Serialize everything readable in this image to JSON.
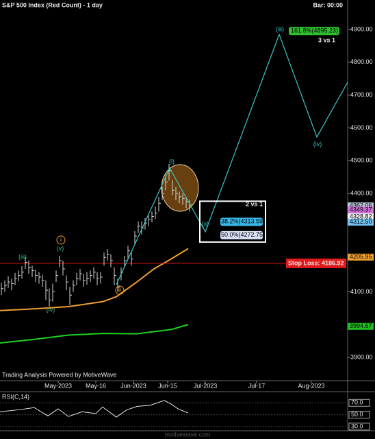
{
  "chart_data": [
    {
      "type": "ohlc",
      "title": "S&P 500 Index (Red Count) - 1 day",
      "bar_time": "Bar: 00:00",
      "powered_by": "Trading Analysis Powered by MotiveWave",
      "xlim": [
        0,
        101.6
      ],
      "ylim": [
        3829,
        4990
      ],
      "xticks": [
        {
          "value": 17,
          "label": "May-2023"
        },
        {
          "value": 28,
          "label": "May-16"
        },
        {
          "value": 39,
          "label": "Jun-2023"
        },
        {
          "value": 49,
          "label": "Jun-15"
        },
        {
          "value": 60,
          "label": "Jul-2023"
        },
        {
          "value": 75,
          "label": "Jul-17"
        },
        {
          "value": 91,
          "label": "Aug-2023"
        }
      ],
      "yticks": [
        {
          "value": 3900,
          "label": "3900.00"
        },
        {
          "value": 4100,
          "label": "4100.00"
        },
        {
          "value": 4400,
          "label": "4400.00"
        },
        {
          "value": 4500,
          "label": "4500.00"
        },
        {
          "value": 4600,
          "label": "4600.00"
        },
        {
          "value": 4700,
          "label": "4700.00"
        },
        {
          "value": 4800,
          "label": "4800.00"
        },
        {
          "value": 4900,
          "label": "4900.00"
        }
      ],
      "bar_color": "#d8d8d8",
      "bars": {
        "high": [
          4128,
          4135,
          4148,
          4140,
          4158,
          4165,
          4178,
          4205,
          4195,
          4180,
          4168,
          4160,
          4152,
          4135,
          4110,
          4125,
          4165,
          4210,
          4195,
          4150,
          4115,
          4135,
          4158,
          4170,
          4155,
          4160,
          4165,
          4175,
          4160,
          4160,
          4220,
          4230,
          4215,
          4175,
          4140,
          4175,
          4210,
          4240,
          4225,
          4285,
          4315,
          4315,
          4325,
          4335,
          4345,
          4360,
          4390,
          4420,
          4455,
          4490,
          4440,
          4420,
          4405,
          4400,
          4390,
          4380
        ],
        "low": [
          4090,
          4100,
          4112,
          4105,
          4120,
          4132,
          4140,
          4170,
          4155,
          4145,
          4130,
          4125,
          4115,
          4075,
          4055,
          4070,
          4130,
          4175,
          4150,
          4105,
          4060,
          4100,
          4120,
          4135,
          4115,
          4122,
          4130,
          4140,
          4120,
          4125,
          4180,
          4195,
          4175,
          4120,
          4100,
          4135,
          4175,
          4200,
          4180,
          4245,
          4280,
          4275,
          4290,
          4300,
          4312,
          4322,
          4345,
          4380,
          4410,
          4440,
          4395,
          4380,
          4370,
          4365,
          4355,
          4345
        ],
        "close": [
          4110,
          4120,
          4130,
          4125,
          4140,
          4150,
          4160,
          4190,
          4175,
          4165,
          4150,
          4145,
          4135,
          4105,
          4075,
          4100,
          4150,
          4195,
          4170,
          4130,
          4090,
          4120,
          4140,
          4155,
          4135,
          4140,
          4150,
          4160,
          4140,
          4145,
          4205,
          4215,
          4195,
          4150,
          4115,
          4160,
          4195,
          4225,
          4200,
          4270,
          4300,
          4295,
          4310,
          4320,
          4330,
          4340,
          4370,
          4400,
          4435,
          4470,
          4410,
          4400,
          4390,
          4385,
          4375,
          4365
        ]
      },
      "overlays": [
        {
          "color": "#f0a030",
          "x": [
            0,
            10,
            20,
            30,
            34,
            40,
            45,
            50,
            55
          ],
          "values": [
            4043,
            4048,
            4055,
            4070,
            4085,
            4130,
            4170,
            4200,
            4232
          ]
        },
        {
          "color": "#20d020",
          "x": [
            0,
            10,
            20,
            30,
            40,
            50,
            55
          ],
          "values": [
            3944,
            3955,
            3968,
            3973,
            3972,
            3985,
            4000
          ]
        }
      ],
      "projection": {
        "color": "#3cc8c8",
        "x": [
          34,
          49.6,
          60,
          81.6,
          92.6,
          101.6
        ],
        "values": [
          4122,
          4477,
          4283,
          4885,
          4572,
          4739
        ]
      },
      "annotations": [
        {
          "text": "(iii)",
          "x": 6.6,
          "y": 4205,
          "color": "#40c080"
        },
        {
          "text": "(v)",
          "x": 17.6,
          "y": 4231,
          "color": "#40c080"
        },
        {
          "text": "(iv)",
          "x": 14.8,
          "y": 4044,
          "color": "#40c080"
        },
        {
          "text": "i",
          "x": 17.8,
          "y": 4258,
          "color": "#f0a030",
          "circled": true
        },
        {
          "text": "ii",
          "x": 35,
          "y": 4105,
          "color": "#f0a030",
          "circled": true
        },
        {
          "text": "(i)",
          "x": 50.2,
          "y": 4496,
          "color": "#3cc8c8"
        },
        {
          "text": "(ii)",
          "x": 60,
          "y": 4306,
          "color": "#3cc8c8"
        },
        {
          "text": "(iii)",
          "x": 81.8,
          "y": 4900,
          "color": "#3cc8c8"
        },
        {
          "text": "(iv)",
          "x": 92.8,
          "y": 4549,
          "color": "#3cc8c8"
        }
      ],
      "target": {
        "value": 4895.23,
        "label": "161.8%(4895.23)",
        "note": "3 vs 1",
        "color": "#30c030"
      },
      "fib": {
        "title": "2 vs 1",
        "levels": [
          {
            "value": 4313.59,
            "label": "38.2%(4313.59)",
            "color": "#38b8e8"
          },
          {
            "value": 4272.75,
            "label": "50.0%(4272.75)",
            "color": "#d8e0f8"
          }
        ]
      },
      "stop_loss": {
        "value": 4186.92,
        "label": "Stop Loss: 4186.92",
        "color": "#e01818"
      },
      "price_markers": [
        {
          "value": 4362.06,
          "color": "#b8c4d8"
        },
        {
          "value": 4349.37,
          "color": "#d070d8"
        },
        {
          "value": 4328.82,
          "color": "#f0f0f0"
        },
        {
          "value": 4312.5,
          "label": "4312.50",
          "color": "#70c0f0"
        },
        {
          "value": 4205.95,
          "color": "#f0a030"
        },
        {
          "value": 3994.67,
          "color": "#20c020"
        }
      ]
    },
    {
      "type": "line",
      "title": "RSI(C,14)",
      "watermark": "motivewave.com",
      "xlim": [
        0,
        101.6
      ],
      "ylim": [
        23,
        86.5
      ],
      "yticks": [
        {
          "value": 30,
          "label": "30.0"
        },
        {
          "value": 50,
          "label": "50.0"
        },
        {
          "value": 70,
          "label": "70.0"
        }
      ],
      "color": "#e8e8e8",
      "x": [
        0,
        5,
        10,
        14,
        17,
        20,
        24,
        28,
        30,
        34,
        37,
        40,
        44,
        48,
        50,
        52,
        55
      ],
      "values": [
        55,
        58,
        62,
        48,
        60,
        47,
        55,
        52,
        63,
        46,
        58,
        64,
        66,
        74,
        68,
        60,
        53
      ]
    }
  ]
}
